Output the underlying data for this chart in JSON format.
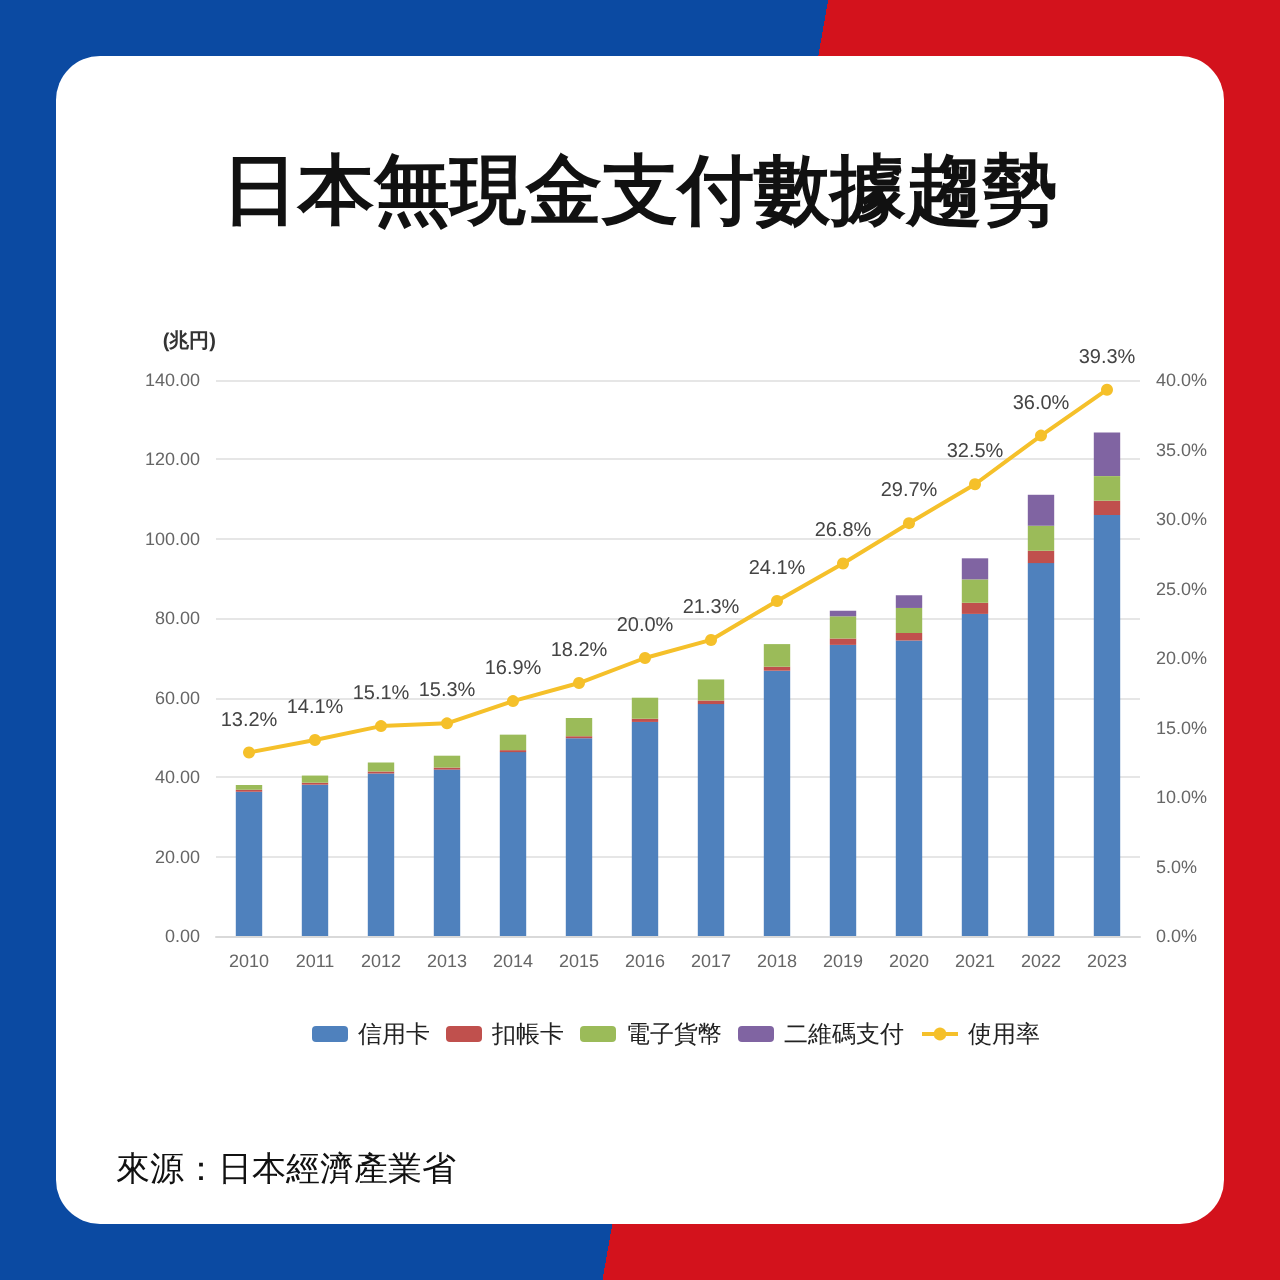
{
  "chart_data": {
    "type": "bar",
    "title": "日本無現金支付數據趨勢",
    "ylabel": "(兆円)",
    "stacked": true,
    "grid": "y",
    "legend": "bottom",
    "categories": [
      "2010",
      "2011",
      "2012",
      "2013",
      "2014",
      "2015",
      "2016",
      "2017",
      "2018",
      "2019",
      "2020",
      "2021",
      "2022",
      "2023"
    ],
    "series": [
      {
        "name": "信用卡",
        "color": "#4f81bd",
        "values": [
          36.3,
          38.1,
          40.9,
          41.9,
          46.3,
          49.8,
          53.9,
          58.4,
          66.8,
          73.3,
          74.4,
          81.1,
          93.9,
          106.0
        ]
      },
      {
        "name": "扣帳卡",
        "color": "#c0504d",
        "values": [
          0.5,
          0.5,
          0.5,
          0.5,
          0.5,
          0.5,
          0.8,
          0.9,
          1.0,
          1.6,
          1.9,
          2.8,
          3.1,
          3.6
        ]
      },
      {
        "name": "電子貨幣",
        "color": "#9bbb59",
        "values": [
          1.2,
          1.8,
          2.3,
          3.0,
          3.9,
          4.6,
          5.3,
          5.3,
          5.7,
          5.6,
          6.3,
          5.9,
          6.3,
          6.2
        ]
      },
      {
        "name": "二維碼支付",
        "color": "#8064a2",
        "values": [
          0,
          0,
          0,
          0,
          0,
          0,
          0,
          0,
          0,
          1.4,
          3.2,
          5.3,
          7.8,
          11.0
        ]
      },
      {
        "name": "使用率",
        "type": "line",
        "axis": "y2",
        "color": "#f5c02a",
        "marker": "circle",
        "values": [
          13.2,
          14.1,
          15.1,
          15.3,
          16.9,
          18.2,
          20.0,
          21.3,
          24.1,
          26.8,
          29.7,
          32.5,
          36.0,
          39.3
        ],
        "value_labels": [
          "13.2%",
          "14.1%",
          "15.1%",
          "15.3%",
          "16.9%",
          "18.2%",
          "20.0%",
          "21.3%",
          "24.1%",
          "26.8%",
          "29.7%",
          "32.5%",
          "36.0%",
          "39.3%"
        ]
      }
    ],
    "ylim": [
      0,
      140
    ],
    "yticks": [
      {
        "value": 0,
        "label": "0.00"
      },
      {
        "value": 20,
        "label": "20.00"
      },
      {
        "value": 40,
        "label": "40.00"
      },
      {
        "value": 60,
        "label": "60.00"
      },
      {
        "value": 80,
        "label": "80.00"
      },
      {
        "value": 100,
        "label": "100.00"
      },
      {
        "value": 120,
        "label": "120.00"
      },
      {
        "value": 140,
        "label": "140.00"
      }
    ],
    "y2lim": [
      0,
      40
    ],
    "y2ticks": [
      {
        "value": 0,
        "label": "0.0%"
      },
      {
        "value": 5,
        "label": "5.0%"
      },
      {
        "value": 10,
        "label": "10.0%"
      },
      {
        "value": 15,
        "label": "15.0%"
      },
      {
        "value": 20,
        "label": "20.0%"
      },
      {
        "value": 25,
        "label": "25.0%"
      },
      {
        "value": 30,
        "label": "30.0%"
      },
      {
        "value": 35,
        "label": "35.0%"
      },
      {
        "value": 40,
        "label": "40.0%"
      }
    ],
    "annotations": [
      "來源：日本經濟產業省"
    ]
  }
}
